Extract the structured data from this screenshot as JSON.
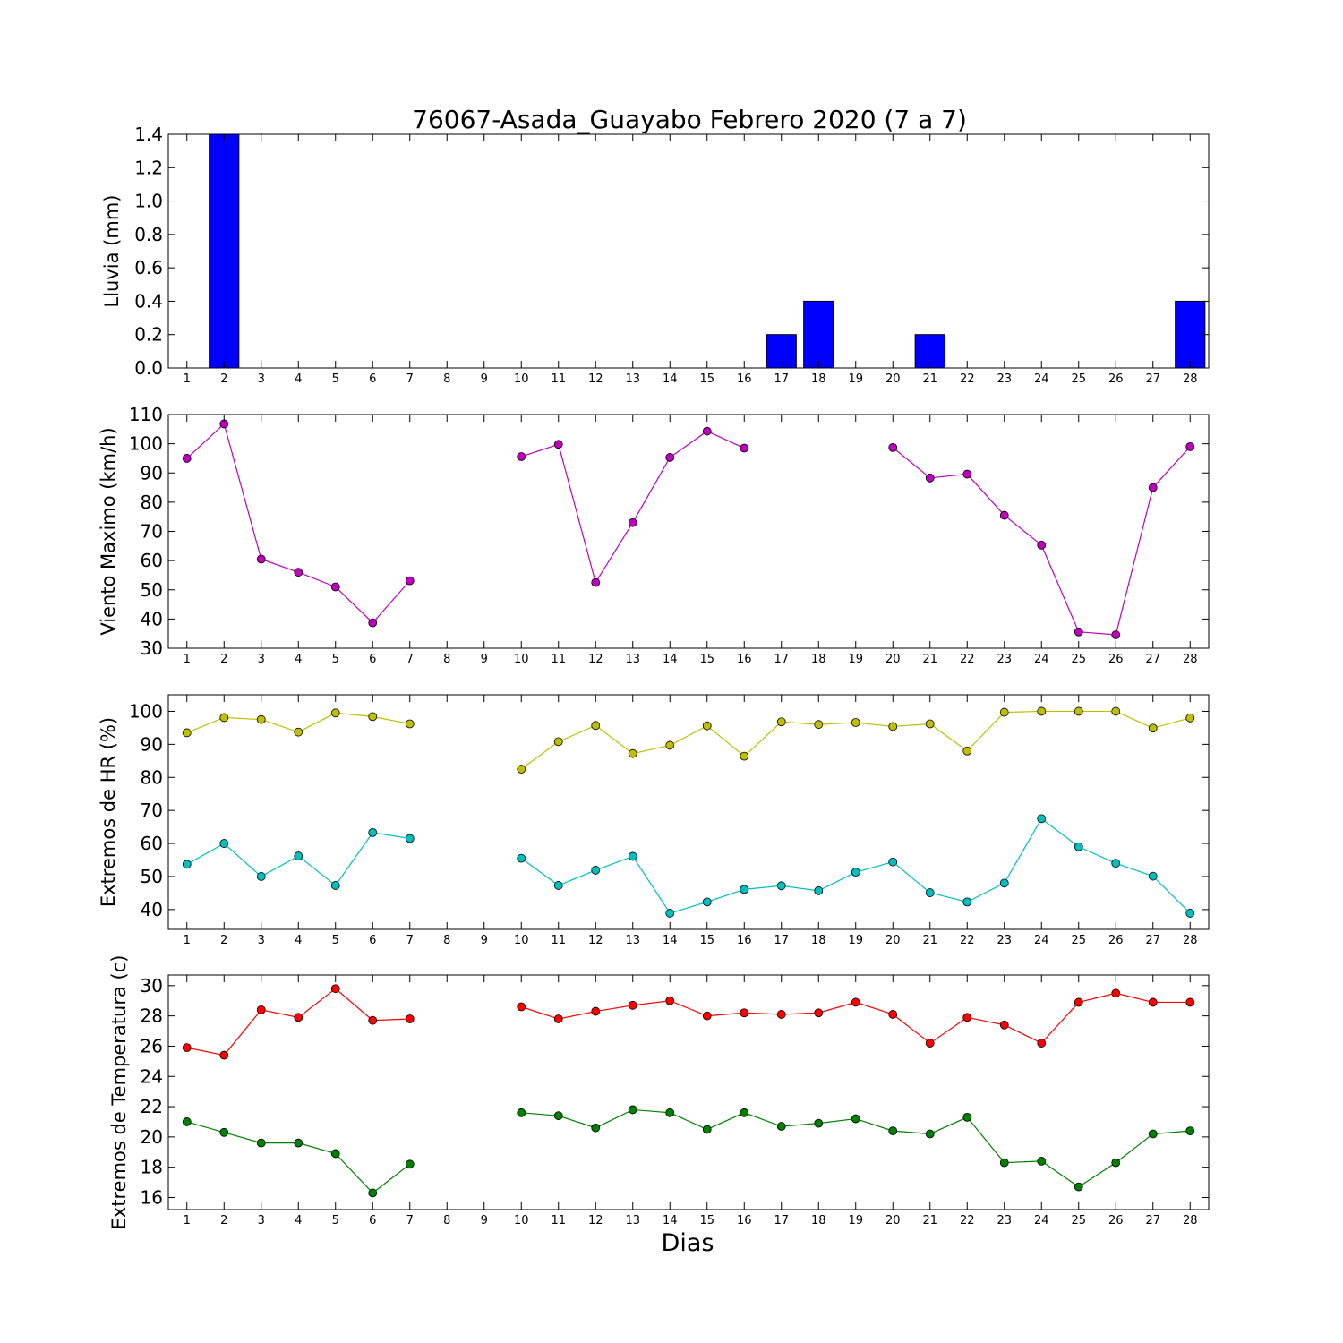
{
  "title": "76067-Asada_Guayabo Febrero 2020  (7 a 7)",
  "xlabel": "Dias",
  "chart_data": [
    {
      "type": "bar",
      "ylabel": "Lluvia (mm)",
      "ylim": [
        0,
        1.4
      ],
      "yticks": [
        "0.0",
        "0.2",
        "0.4",
        "0.6",
        "0.8",
        "1.0",
        "1.2",
        "1.4"
      ],
      "xticks": [
        1,
        2,
        3,
        4,
        5,
        6,
        7,
        8,
        9,
        10,
        11,
        12,
        13,
        14,
        15,
        16,
        17,
        18,
        19,
        20,
        21,
        22,
        23,
        24,
        25,
        26,
        27,
        28
      ],
      "xlim": [
        0.5,
        28.5
      ],
      "series": [
        {
          "color": "#0000ff",
          "x": [
            1,
            2,
            3,
            4,
            5,
            6,
            7,
            8,
            9,
            10,
            11,
            12,
            13,
            14,
            15,
            16,
            17,
            18,
            19,
            20,
            21,
            22,
            23,
            24,
            25,
            26,
            27,
            28
          ],
          "values": [
            0,
            1.4,
            0,
            0,
            0,
            0,
            0,
            0,
            0,
            0,
            0,
            0,
            0,
            0,
            0,
            0,
            0.2,
            0.4,
            0,
            0,
            0.2,
            0,
            0,
            0,
            0,
            0,
            0,
            0.4
          ]
        }
      ]
    },
    {
      "type": "line",
      "ylabel": "Viento Maximo (km/h)",
      "ylim": [
        30,
        110
      ],
      "yticks": [
        "30",
        "40",
        "50",
        "60",
        "70",
        "80",
        "90",
        "100",
        "110"
      ],
      "xticks": [
        1,
        2,
        3,
        4,
        5,
        6,
        7,
        8,
        9,
        10,
        11,
        12,
        13,
        14,
        15,
        16,
        17,
        18,
        19,
        20,
        21,
        22,
        23,
        24,
        25,
        26,
        27,
        28
      ],
      "xlim": [
        0.5,
        28.5
      ],
      "series": [
        {
          "color": "#bf00bf",
          "x": [
            1,
            2,
            3,
            4,
            5,
            6,
            7,
            10,
            11,
            12,
            13,
            14,
            15,
            16,
            20,
            21,
            22,
            23,
            24,
            25,
            26,
            27,
            28
          ],
          "values": [
            95,
            106.8,
            60.5,
            56,
            51,
            38.7,
            53.1,
            95.6,
            99.8,
            52.5,
            73,
            95.3,
            104.3,
            98.5,
            98.7,
            88.3,
            89.6,
            75.5,
            65.3,
            35.6,
            34.6,
            85,
            99
          ]
        }
      ]
    },
    {
      "type": "line",
      "ylabel": "Extremos de HR (%)",
      "ylim": [
        34,
        105
      ],
      "yticks": [
        "40",
        "50",
        "60",
        "70",
        "80",
        "90",
        "100"
      ],
      "xticks": [
        1,
        2,
        3,
        4,
        5,
        6,
        7,
        8,
        9,
        10,
        11,
        12,
        13,
        14,
        15,
        16,
        17,
        18,
        19,
        20,
        21,
        22,
        23,
        24,
        25,
        26,
        27,
        28
      ],
      "xlim": [
        0.5,
        28.5
      ],
      "series": [
        {
          "color": "#bfbf00",
          "x": [
            1,
            2,
            3,
            4,
            5,
            6,
            7,
            10,
            11,
            12,
            13,
            14,
            15,
            16,
            17,
            18,
            19,
            20,
            21,
            22,
            23,
            24,
            25,
            26,
            27,
            28
          ],
          "values": [
            93.5,
            98.1,
            97.5,
            93.7,
            99.5,
            98.4,
            96.2,
            82.5,
            90.8,
            95.7,
            87.2,
            89.7,
            95.6,
            86.4,
            96.8,
            96,
            96.6,
            95.4,
            96.2,
            88,
            99.7,
            100,
            100,
            100,
            94.9,
            98
          ]
        },
        {
          "color": "#00bfbf",
          "x": [
            1,
            2,
            3,
            4,
            5,
            6,
            7,
            10,
            11,
            12,
            13,
            14,
            15,
            16,
            17,
            18,
            19,
            20,
            21,
            22,
            23,
            24,
            25,
            26,
            27,
            28
          ],
          "values": [
            53.7,
            60,
            50,
            56.2,
            47.3,
            63.3,
            61.5,
            55.5,
            47.3,
            51.9,
            56.1,
            38.9,
            42.3,
            46.1,
            47.2,
            45.7,
            51.3,
            54.4,
            45.1,
            42.3,
            48,
            67.5,
            59,
            54,
            50.1,
            38.9
          ]
        }
      ]
    },
    {
      "type": "line",
      "ylabel": "Extremos de Temperatura (c)",
      "ylim": [
        15.2,
        30.7
      ],
      "yticks": [
        "16",
        "18",
        "20",
        "22",
        "24",
        "26",
        "28",
        "30"
      ],
      "xticks": [
        1,
        2,
        3,
        4,
        5,
        6,
        7,
        8,
        9,
        10,
        11,
        12,
        13,
        14,
        15,
        16,
        17,
        18,
        19,
        20,
        21,
        22,
        23,
        24,
        25,
        26,
        27,
        28
      ],
      "xlim": [
        0.5,
        28.5
      ],
      "series": [
        {
          "color": "#ff0000",
          "x": [
            1,
            2,
            3,
            4,
            5,
            6,
            7,
            10,
            11,
            12,
            13,
            14,
            15,
            16,
            17,
            18,
            19,
            20,
            21,
            22,
            23,
            24,
            25,
            26,
            27,
            28
          ],
          "values": [
            25.9,
            25.4,
            28.4,
            27.9,
            29.8,
            27.7,
            27.8,
            28.6,
            27.8,
            28.3,
            28.7,
            29,
            28,
            28.2,
            28.1,
            28.2,
            28.9,
            28.1,
            26.2,
            27.9,
            27.4,
            26.2,
            28.9,
            29.5,
            28.9,
            28.9
          ]
        },
        {
          "color": "#008000",
          "x": [
            1,
            2,
            3,
            4,
            5,
            6,
            7,
            10,
            11,
            12,
            13,
            14,
            15,
            16,
            17,
            18,
            19,
            20,
            21,
            22,
            23,
            24,
            25,
            26,
            27,
            28
          ],
          "values": [
            21,
            20.3,
            19.6,
            19.6,
            18.9,
            16.3,
            18.2,
            21.6,
            21.4,
            20.6,
            21.8,
            21.6,
            20.5,
            21.6,
            20.7,
            20.9,
            21.2,
            20.4,
            20.2,
            21.3,
            18.3,
            18.4,
            16.7,
            18.3,
            20.2,
            20.4
          ]
        }
      ]
    }
  ]
}
